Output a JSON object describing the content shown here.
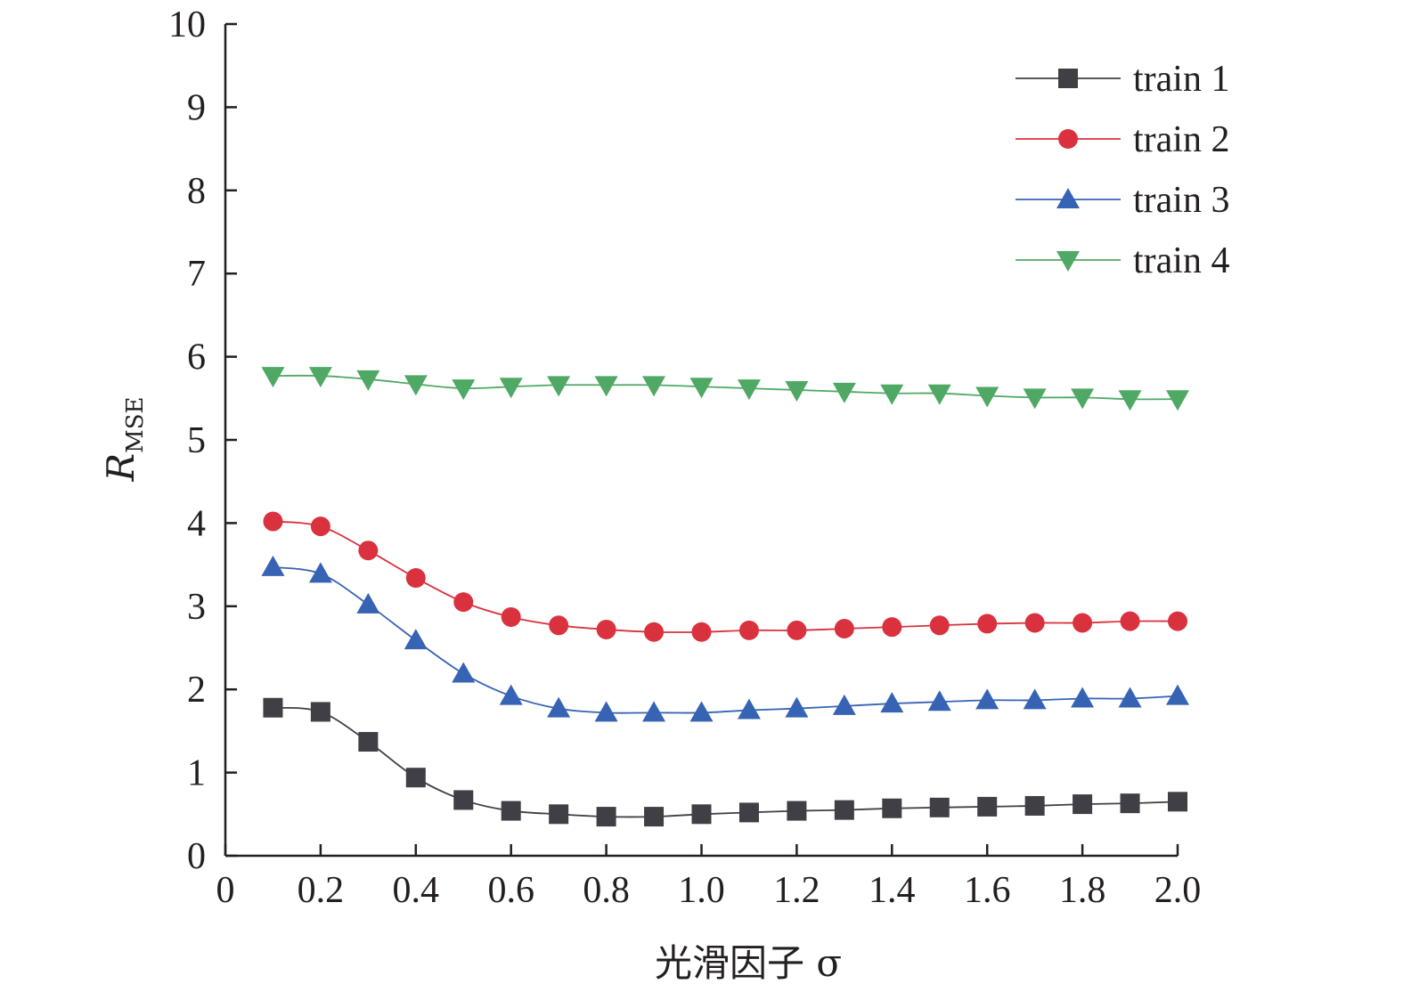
{
  "chart_data": {
    "type": "line",
    "x": [
      0.1,
      0.2,
      0.3,
      0.4,
      0.5,
      0.6,
      0.7,
      0.8,
      0.9,
      1.0,
      1.1,
      1.2,
      1.3,
      1.4,
      1.5,
      1.6,
      1.7,
      1.8,
      1.9,
      2.0
    ],
    "series": [
      {
        "name": "train 1",
        "marker": "square",
        "color": "#3f3f45",
        "values": [
          1.78,
          1.73,
          1.37,
          0.94,
          0.67,
          0.54,
          0.5,
          0.47,
          0.47,
          0.5,
          0.52,
          0.54,
          0.55,
          0.57,
          0.58,
          0.59,
          0.6,
          0.62,
          0.63,
          0.65
        ]
      },
      {
        "name": "train 2",
        "marker": "circle",
        "color": "#d9323e",
        "values": [
          4.02,
          3.96,
          3.67,
          3.34,
          3.05,
          2.87,
          2.77,
          2.72,
          2.69,
          2.69,
          2.71,
          2.71,
          2.73,
          2.75,
          2.77,
          2.79,
          2.8,
          2.8,
          2.82,
          2.82
        ]
      },
      {
        "name": "train 3",
        "marker": "triangle-up",
        "color": "#3763b4",
        "values": [
          3.47,
          3.39,
          3.02,
          2.59,
          2.19,
          1.92,
          1.77,
          1.72,
          1.72,
          1.72,
          1.75,
          1.77,
          1.8,
          1.83,
          1.85,
          1.87,
          1.87,
          1.89,
          1.89,
          1.92
        ]
      },
      {
        "name": "train 4",
        "marker": "triangle-down",
        "color": "#4fa964",
        "values": [
          5.77,
          5.77,
          5.73,
          5.67,
          5.62,
          5.64,
          5.66,
          5.66,
          5.66,
          5.64,
          5.62,
          5.6,
          5.58,
          5.56,
          5.56,
          5.53,
          5.51,
          5.51,
          5.49,
          5.49
        ]
      }
    ],
    "xlabel": "光滑因子 σ",
    "ylabel": "R_MSE",
    "ylabel_main": "R",
    "ylabel_sub": "MSE",
    "xlim": [
      0,
      2.0
    ],
    "ylim": [
      0,
      10
    ],
    "xticks": [
      0,
      0.2,
      0.4,
      0.6,
      0.8,
      1.0,
      1.2,
      1.4,
      1.6,
      1.8,
      2.0
    ],
    "xtick_labels": [
      "0",
      "0.2",
      "0.4",
      "0.6",
      "0.8",
      "1.0",
      "1.2",
      "1.4",
      "1.6",
      "1.8",
      "2.0"
    ],
    "yticks": [
      0,
      1,
      2,
      3,
      4,
      5,
      6,
      7,
      8,
      9,
      10
    ],
    "ytick_labels": [
      "0",
      "1",
      "2",
      "3",
      "4",
      "5",
      "6",
      "7",
      "8",
      "9",
      "10"
    ],
    "grid": false,
    "legend_position": "top-right"
  }
}
